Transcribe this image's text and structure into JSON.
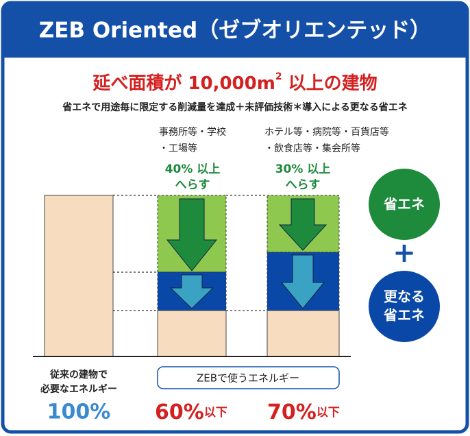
{
  "header": {
    "title": "ZEB Oriented（ゼブオリエンテッド）"
  },
  "heading": {
    "before": "延べ面積が 10,000m",
    "superscript": "2",
    "after": " 以上の建物"
  },
  "subheading": "省エネで用途毎に限定する削減量を達成＋未評価技術＊導入による更なる省エネ",
  "columns": [
    {
      "category": [
        "事務所等・学校",
        "・工場等"
      ],
      "reduction": [
        "40% 以上",
        "へらす"
      ],
      "result": "60%",
      "result_suffix": "以下"
    },
    {
      "category": [
        "ホテル等・病院等・百貨店等",
        "・飲食店等・集会所等"
      ],
      "reduction": [
        "30% 以上",
        "へらす"
      ],
      "result": "70%",
      "result_suffix": "以下"
    }
  ],
  "baseline": {
    "label": [
      "従来の建物で",
      "必要なエネルギー"
    ],
    "value": "100%"
  },
  "zeb_label": "ZEBで使うエネルギー",
  "legend": {
    "first": "省エネ",
    "plus": "+",
    "second": [
      "更なる",
      "省エネ"
    ]
  }
}
